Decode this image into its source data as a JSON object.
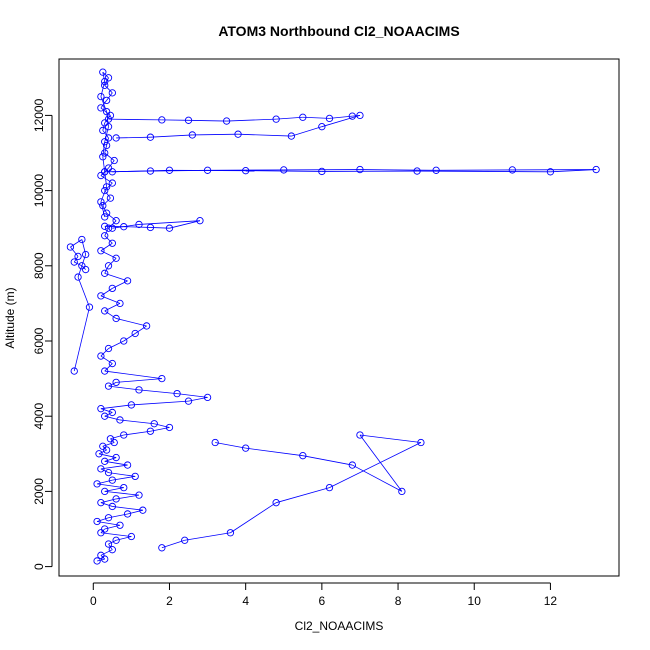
{
  "chart_data": {
    "type": "scatter",
    "title": "ATOM3 Northbound Cl2_NOAACIMS",
    "xlabel": "Cl2_NOAACIMS",
    "ylabel": "Altitude (m)",
    "xlim": [
      -0.9,
      13.8
    ],
    "ylim": [
      -250,
      13500
    ],
    "xticks": [
      0,
      2,
      4,
      6,
      8,
      10,
      12
    ],
    "yticks": [
      0,
      2000,
      4000,
      6000,
      8000,
      10000,
      12000
    ],
    "xtick_labels": [
      "0",
      "2",
      "4",
      "6",
      "8",
      "10",
      "12"
    ],
    "ytick_labels": [
      "0",
      "2000",
      "4000",
      "6000",
      "8000",
      "10000",
      "12000"
    ],
    "grid": false,
    "legend": "none",
    "color": "#0000ff",
    "marker": "open-circle",
    "connected": true,
    "series": [
      {
        "x": [
          0.1,
          0.3,
          0.2,
          0.5,
          0.4,
          0.6,
          1.0,
          0.2,
          0.3,
          0.7,
          0.1,
          0.4,
          0.9,
          1.3,
          0.5,
          0.2,
          0.6,
          1.2,
          0.3,
          0.8,
          0.1,
          0.5,
          1.1,
          0.4,
          0.2,
          0.9,
          0.3,
          0.6,
          0.15,
          0.35,
          0.25,
          0.55,
          0.45,
          0.8,
          1.5,
          2.0,
          1.6,
          0.7,
          0.3,
          0.5,
          0.2,
          1.0,
          2.5,
          3.0,
          2.2,
          1.2,
          0.4,
          0.6,
          1.8,
          0.3,
          0.5,
          0.2,
          0.4,
          0.8,
          1.1,
          1.4,
          0.6,
          0.3,
          0.7,
          0.2,
          0.5,
          0.9,
          0.3,
          0.4,
          0.6,
          0.2,
          0.5,
          0.3,
          0.4,
          0.6,
          0.35,
          0.25,
          0.45,
          0.3,
          0.5,
          0.2,
          0.4,
          0.55,
          0.3,
          0.35,
          0.4,
          0.25,
          0.3,
          0.45,
          0.2,
          0.35,
          0.5,
          0.3,
          0.4,
          0.25,
          0.3,
          0.2,
          0.35,
          0.4,
          0.3,
          0.25,
          0.3,
          0.35,
          0.2,
          0.3
        ],
        "y": [
          150,
          200,
          300,
          450,
          600,
          700,
          800,
          900,
          1000,
          1100,
          1200,
          1300,
          1400,
          1500,
          1600,
          1700,
          1800,
          1900,
          2000,
          2100,
          2200,
          2300,
          2400,
          2500,
          2600,
          2700,
          2800,
          2900,
          3000,
          3100,
          3200,
          3300,
          3400,
          3500,
          3600,
          3700,
          3800,
          3900,
          4000,
          4100,
          4200,
          4300,
          4400,
          4500,
          4600,
          4700,
          4800,
          4900,
          5000,
          5200,
          5400,
          5600,
          5800,
          6000,
          6200,
          6400,
          6600,
          6800,
          7000,
          7200,
          7400,
          7600,
          7800,
          8000,
          8200,
          8400,
          8600,
          8800,
          9000,
          9200,
          9400,
          9600,
          9800,
          10000,
          10200,
          10400,
          10600,
          10800,
          11000,
          11200,
          11400,
          11600,
          11800,
          12000,
          12200,
          12400,
          12600,
          12800,
          13000,
          13150,
          12900,
          12500,
          12100,
          11700,
          11300,
          10900,
          10500,
          10100,
          9700,
          9300
        ]
      },
      {
        "x": [
          3.2,
          4.0,
          5.5,
          6.8,
          8.1,
          7.0,
          8.6,
          6.2,
          4.8,
          3.6,
          2.4,
          1.8
        ],
        "y": [
          3300,
          3150,
          2950,
          2700,
          2000,
          3500,
          3300,
          2100,
          1700,
          900,
          700,
          500
        ]
      },
      {
        "x": [
          0.3,
          1.5,
          3.0,
          5.0,
          7.0,
          9.0,
          11.0,
          13.2,
          12.0,
          8.5,
          6.0,
          4.0,
          2.0,
          0.5
        ],
        "y": [
          10500,
          10520,
          10540,
          10550,
          10560,
          10540,
          10550,
          10560,
          10500,
          10520,
          10510,
          10530,
          10540,
          10500
        ]
      },
      {
        "x": [
          0.4,
          1.8,
          2.5,
          3.5,
          4.8,
          5.5,
          6.2,
          6.8,
          7.0,
          6.0,
          5.2,
          3.8,
          2.6,
          1.5,
          0.6
        ],
        "y": [
          11900,
          11880,
          11870,
          11850,
          11900,
          11950,
          11920,
          11980,
          12000,
          11700,
          11450,
          11500,
          11480,
          11420,
          11400
        ]
      },
      {
        "x": [
          0.3,
          0.8,
          1.5,
          2.0,
          2.8,
          1.2,
          0.5
        ],
        "y": [
          9050,
          9040,
          9020,
          9000,
          9200,
          9100,
          9000
        ]
      },
      {
        "x": [
          -0.2,
          -0.3,
          -0.5,
          -0.4,
          -0.6,
          -0.3,
          -0.2,
          -0.4,
          -0.1,
          -0.5
        ],
        "y": [
          7900,
          8000,
          8100,
          8250,
          8500,
          8700,
          8300,
          7700,
          6900,
          5200
        ]
      }
    ]
  }
}
